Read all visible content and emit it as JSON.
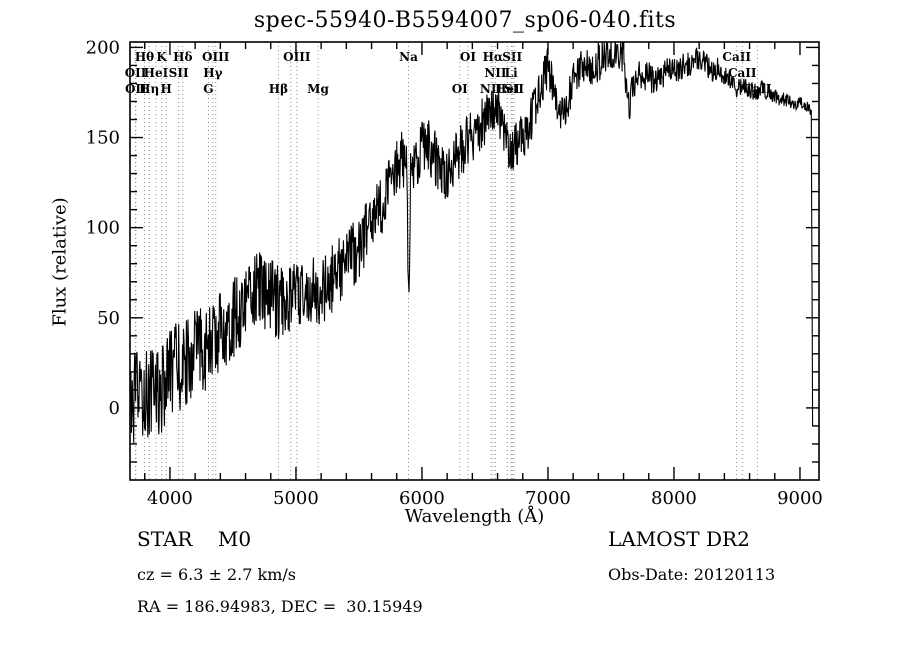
{
  "title": "spec-55940-B5594007_sp06-040.fits",
  "annotations": {
    "class_label": "STAR    M0",
    "survey": "LAMOST DR2",
    "cz": "cz = 6.3 ± 2.7 km/s",
    "obs_date": "Obs-Date: 20120113",
    "coords": "RA = 186.94983, DEC =  30.15949"
  },
  "chart_data": {
    "type": "line",
    "title": "spec-55940-B5594007_sp06-040.fits",
    "xlabel": "Wavelength (Å)",
    "ylabel": "Flux (relative)",
    "xlim": [
      3683,
      9151
    ],
    "ylim": [
      -40,
      203
    ],
    "x_ticks": [
      4000,
      5000,
      6000,
      7000,
      8000,
      9000
    ],
    "x_minor_step": 200,
    "y_ticks": [
      0,
      50,
      100,
      150,
      200
    ],
    "y_minor_step": 10,
    "grid": false,
    "legend": "none",
    "line_color": "#000000",
    "marker_line_color": "#8a8a8a",
    "series": [
      {
        "name": "spectrum",
        "points": [
          [
            3690,
            -5
          ],
          [
            3720,
            5
          ],
          [
            3750,
            8
          ],
          [
            3780,
            6
          ],
          [
            3810,
            10
          ],
          [
            3840,
            8
          ],
          [
            3870,
            14
          ],
          [
            3900,
            12
          ],
          [
            3930,
            6
          ],
          [
            3960,
            16
          ],
          [
            4000,
            20
          ],
          [
            4050,
            24
          ],
          [
            4100,
            20
          ],
          [
            4150,
            28
          ],
          [
            4200,
            32
          ],
          [
            4250,
            34
          ],
          [
            4300,
            32
          ],
          [
            4350,
            38
          ],
          [
            4400,
            42
          ],
          [
            4450,
            46
          ],
          [
            4500,
            50
          ],
          [
            4550,
            54
          ],
          [
            4600,
            60
          ],
          [
            4650,
            64
          ],
          [
            4700,
            67
          ],
          [
            4750,
            64
          ],
          [
            4800,
            61
          ],
          [
            4850,
            58
          ],
          [
            4900,
            61
          ],
          [
            4950,
            62
          ],
          [
            5000,
            61
          ],
          [
            5050,
            64
          ],
          [
            5100,
            66
          ],
          [
            5150,
            63
          ],
          [
            5200,
            61
          ],
          [
            5250,
            68
          ],
          [
            5300,
            73
          ],
          [
            5350,
            77
          ],
          [
            5400,
            81
          ],
          [
            5450,
            85
          ],
          [
            5500,
            90
          ],
          [
            5550,
            95
          ],
          [
            5600,
            101
          ],
          [
            5650,
            108
          ],
          [
            5700,
            116
          ],
          [
            5750,
            126
          ],
          [
            5800,
            134
          ],
          [
            5850,
            139
          ],
          [
            5880,
            132
          ],
          [
            5893,
            56
          ],
          [
            5910,
            126
          ],
          [
            5950,
            136
          ],
          [
            6000,
            144
          ],
          [
            6050,
            147
          ],
          [
            6100,
            139
          ],
          [
            6150,
            131
          ],
          [
            6200,
            128
          ],
          [
            6250,
            137
          ],
          [
            6300,
            141
          ],
          [
            6350,
            147
          ],
          [
            6400,
            151
          ],
          [
            6450,
            156
          ],
          [
            6500,
            159
          ],
          [
            6550,
            163
          ],
          [
            6600,
            167
          ],
          [
            6650,
            154
          ],
          [
            6700,
            141
          ],
          [
            6750,
            147
          ],
          [
            6800,
            151
          ],
          [
            6850,
            157
          ],
          [
            6900,
            168
          ],
          [
            6950,
            179
          ],
          [
            7000,
            189
          ],
          [
            7050,
            177
          ],
          [
            7100,
            161
          ],
          [
            7150,
            169
          ],
          [
            7200,
            181
          ],
          [
            7250,
            187
          ],
          [
            7300,
            189
          ],
          [
            7350,
            187
          ],
          [
            7400,
            191
          ],
          [
            7450,
            195
          ],
          [
            7500,
            197
          ],
          [
            7550,
            198
          ],
          [
            7600,
            195
          ],
          [
            7640,
            167
          ],
          [
            7680,
            178
          ],
          [
            7720,
            184
          ],
          [
            7760,
            182
          ],
          [
            7800,
            184
          ],
          [
            7850,
            181
          ],
          [
            7900,
            185
          ],
          [
            7950,
            187
          ],
          [
            8000,
            187
          ],
          [
            8050,
            189
          ],
          [
            8100,
            191
          ],
          [
            8150,
            192
          ],
          [
            8200,
            194
          ],
          [
            8250,
            191
          ],
          [
            8300,
            187
          ],
          [
            8350,
            189
          ],
          [
            8400,
            184
          ],
          [
            8450,
            181
          ],
          [
            8500,
            177
          ],
          [
            8550,
            179
          ],
          [
            8600,
            177
          ],
          [
            8650,
            175
          ],
          [
            8700,
            177
          ],
          [
            8750,
            175
          ],
          [
            8800,
            173
          ],
          [
            8850,
            171
          ],
          [
            8900,
            171
          ],
          [
            8950,
            169
          ],
          [
            9000,
            169
          ],
          [
            9050,
            167
          ],
          [
            9090,
            165
          ],
          [
            9100,
            -10
          ]
        ]
      }
    ],
    "noise": {
      "seed": 12345,
      "amp_blue": 26,
      "amp_red": 3,
      "step": 4,
      "noise_cutoff": 9085
    },
    "line_markers": [
      {
        "label": "Hθ",
        "wavelength": 3798,
        "row": 1
      },
      {
        "label": "K",
        "wavelength": 3934,
        "row": 1
      },
      {
        "label": "Hδ",
        "wavelength": 4102,
        "row": 1
      },
      {
        "label": "OII",
        "wavelength": 3727,
        "row": 2
      },
      {
        "label": "HeI",
        "wavelength": 3889,
        "row": 2
      },
      {
        "label": "SII",
        "wavelength": 4069,
        "row": 2
      },
      {
        "label": "OII",
        "wavelength": 3729,
        "row": 3
      },
      {
        "label": "Hη",
        "wavelength": 3835,
        "row": 3
      },
      {
        "label": "H",
        "wavelength": 3970,
        "row": 3
      },
      {
        "label": "G",
        "wavelength": 4305,
        "row": 3
      },
      {
        "label": "Hγ",
        "wavelength": 4341,
        "row": 2
      },
      {
        "label": "OIII",
        "wavelength": 4363,
        "row": 1
      },
      {
        "label": "Hβ",
        "wavelength": 4861,
        "row": 3
      },
      {
        "label": "",
        "wavelength": 4959,
        "row": 2
      },
      {
        "label": "OIII",
        "wavelength": 5007,
        "row": 1
      },
      {
        "label": "Mg",
        "wavelength": 5175,
        "row": 3
      },
      {
        "label": "Na",
        "wavelength": 5893,
        "row": 1
      },
      {
        "label": "OI",
        "wavelength": 6300,
        "row": 3
      },
      {
        "label": "OI",
        "wavelength": 6365,
        "row": 1
      },
      {
        "label": "NII",
        "wavelength": 6548,
        "row": 3
      },
      {
        "label": "Hα",
        "wavelength": 6563,
        "row": 1
      },
      {
        "label": "NII",
        "wavelength": 6583,
        "row": 2
      },
      {
        "label": "HeI",
        "wavelength": 6678,
        "row": 3
      },
      {
        "label": "Li",
        "wavelength": 6708,
        "row": 2
      },
      {
        "label": "SII",
        "wavelength": 6716,
        "row": 1
      },
      {
        "label": "SII",
        "wavelength": 6731,
        "row": 3
      },
      {
        "label": "CaII",
        "wavelength": 8498,
        "row": 1
      },
      {
        "label": "CaII",
        "wavelength": 8542,
        "row": 2
      },
      {
        "label": "CaII",
        "wavelength": 8662,
        "row": 3
      }
    ]
  }
}
